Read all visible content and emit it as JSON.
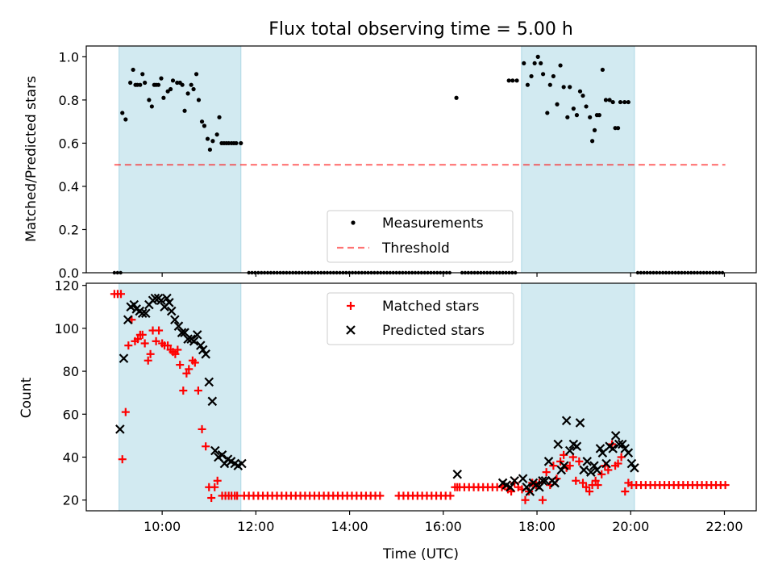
{
  "title": "Flux total observing time = 5.00 h",
  "colors": {
    "shade": "#add8e6",
    "measurement": "#000000",
    "threshold": "#ff0000",
    "matched": "#ff0000",
    "predicted": "#000000"
  },
  "chart_data": [
    {
      "type": "scatter",
      "ylabel": "Matched/Predicted stars",
      "xlim": [
        8.38,
        22.68
      ],
      "ylim": [
        0,
        1.05
      ],
      "yticks": [
        0.0,
        0.2,
        0.4,
        0.6,
        0.8,
        1.0
      ],
      "ytick_labels": [
        "0.0",
        "0.2",
        "0.4",
        "0.6",
        "0.8",
        "1.0"
      ],
      "xticks": [
        10,
        12,
        14,
        16,
        18,
        20,
        22
      ],
      "shaded_spans": [
        [
          9.08,
          11.68
        ],
        [
          17.67,
          20.08
        ]
      ],
      "legend": {
        "placement": "lower center",
        "entries": [
          {
            "label": "Measurements",
            "marker": "dot"
          },
          {
            "label": "Threshold",
            "marker": "dashed-line"
          }
        ]
      },
      "threshold": {
        "value": 0.5,
        "x_range": [
          8.98,
          22.02
        ]
      },
      "zero_run_spans": [
        [
          8.98,
          9.13
        ],
        [
          11.85,
          16.2
        ],
        [
          16.4,
          17.55
        ],
        [
          20.15,
          22.02
        ]
      ],
      "series": [
        {
          "name": "Measurements",
          "x": [
            9.15,
            9.22,
            9.32,
            9.38,
            9.43,
            9.47,
            9.53,
            9.58,
            9.63,
            9.72,
            9.78,
            9.83,
            9.87,
            9.92,
            9.98,
            10.03,
            10.12,
            10.18,
            10.23,
            10.32,
            10.38,
            10.43,
            10.48,
            10.55,
            10.62,
            10.67,
            10.73,
            10.78,
            10.85,
            10.9,
            10.97,
            11.02,
            11.08,
            11.17,
            11.22,
            11.27,
            11.32,
            11.37,
            11.42,
            11.48,
            11.53,
            11.58,
            11.68,
            16.28,
            17.4,
            17.48,
            17.57,
            17.72,
            17.8,
            17.88,
            17.95,
            18.02,
            18.08,
            18.13,
            18.22,
            18.28,
            18.35,
            18.43,
            18.5,
            18.57,
            18.65,
            18.7,
            18.78,
            18.85,
            18.92,
            18.98,
            19.05,
            19.13,
            19.18,
            19.23,
            19.28,
            19.33,
            19.4,
            19.47,
            19.55,
            19.62,
            19.67,
            19.73,
            19.78,
            19.87,
            19.95
          ],
          "y": [
            0.74,
            0.71,
            0.88,
            0.94,
            0.87,
            0.87,
            0.87,
            0.92,
            0.88,
            0.8,
            0.77,
            0.87,
            0.87,
            0.87,
            0.9,
            0.81,
            0.84,
            0.85,
            0.89,
            0.88,
            0.88,
            0.87,
            0.75,
            0.83,
            0.87,
            0.85,
            0.92,
            0.8,
            0.7,
            0.68,
            0.62,
            0.57,
            0.61,
            0.64,
            0.72,
            0.6,
            0.6,
            0.6,
            0.6,
            0.6,
            0.6,
            0.6,
            0.6,
            0.81,
            0.89,
            0.89,
            0.89,
            0.97,
            0.87,
            0.91,
            0.97,
            1.0,
            0.97,
            0.92,
            0.74,
            0.87,
            0.91,
            0.78,
            0.96,
            0.86,
            0.72,
            0.86,
            0.76,
            0.73,
            0.84,
            0.82,
            0.77,
            0.72,
            0.61,
            0.66,
            0.73,
            0.73,
            0.94,
            0.8,
            0.8,
            0.79,
            0.67,
            0.67,
            0.79,
            0.79,
            0.79
          ]
        }
      ]
    },
    {
      "type": "scatter",
      "xlabel": "Time (UTC)",
      "ylabel": "Count",
      "xlim": [
        8.38,
        22.68
      ],
      "ylim": [
        15,
        121
      ],
      "yticks": [
        20,
        40,
        60,
        80,
        100,
        120
      ],
      "ytick_labels": [
        "20",
        "40",
        "60",
        "80",
        "100",
        "120"
      ],
      "xticks": [
        10,
        12,
        14,
        16,
        18,
        20,
        22
      ],
      "xtick_labels": [
        "10:00",
        "12:00",
        "14:00",
        "16:00",
        "18:00",
        "20:00",
        "22:00"
      ],
      "shaded_spans": [
        [
          9.08,
          11.68
        ],
        [
          17.67,
          20.08
        ]
      ],
      "legend": {
        "placement": "upper center",
        "entries": [
          {
            "label": "Matched stars",
            "marker": "plus"
          },
          {
            "label": "Predicted stars",
            "marker": "x"
          }
        ]
      },
      "runs": [
        {
          "series": "Matched stars",
          "x_start": 11.75,
          "x_end": 14.68,
          "y": 22,
          "step": 0.1
        },
        {
          "series": "Matched stars",
          "x_start": 15.05,
          "x_end": 16.2,
          "y": 22,
          "step": 0.1
        },
        {
          "series": "Matched stars",
          "x_start": 16.25,
          "x_end": 17.25,
          "y": 26,
          "step": 0.1
        },
        {
          "series": "Matched stars",
          "x_start": 20.12,
          "x_end": 22.02,
          "y": 27,
          "step": 0.1
        }
      ],
      "series": [
        {
          "name": "Matched stars",
          "x": [
            8.98,
            9.05,
            9.12,
            9.15,
            9.22,
            9.28,
            9.35,
            9.42,
            9.48,
            9.53,
            9.58,
            9.63,
            9.7,
            9.75,
            9.8,
            9.87,
            9.93,
            10.0,
            10.05,
            10.12,
            10.18,
            10.23,
            10.28,
            10.33,
            10.38,
            10.45,
            10.52,
            10.57,
            10.65,
            10.7,
            10.77,
            10.85,
            10.93,
            11.0,
            11.05,
            11.12,
            11.18,
            11.28,
            11.35,
            11.42,
            11.48,
            11.55,
            11.6,
            16.3,
            17.3,
            17.38,
            17.45,
            17.52,
            17.6,
            17.68,
            17.75,
            17.83,
            17.9,
            17.98,
            18.05,
            18.12,
            18.2,
            18.28,
            18.35,
            18.42,
            18.5,
            18.57,
            18.63,
            18.7,
            18.77,
            18.83,
            18.9,
            18.98,
            19.05,
            19.12,
            19.18,
            19.25,
            19.3,
            19.38,
            19.45,
            19.52,
            19.6,
            19.67,
            19.73,
            19.8,
            19.88,
            19.95,
            20.02
          ],
          "y": [
            116,
            116,
            116,
            39,
            61,
            92,
            104,
            94,
            95,
            97,
            97,
            93,
            85,
            88,
            99,
            94,
            99,
            93,
            92,
            92,
            90,
            89,
            88,
            90,
            83,
            71,
            79,
            81,
            85,
            84,
            71,
            53,
            45,
            26,
            21,
            26,
            29,
            22,
            22,
            22,
            22,
            22,
            22,
            26,
            27,
            25,
            24,
            28,
            26,
            25,
            20,
            24,
            28,
            27,
            28,
            20,
            33,
            27,
            36,
            30,
            38,
            41,
            35,
            36,
            40,
            29,
            38,
            28,
            26,
            24,
            27,
            29,
            27,
            32,
            36,
            34,
            46,
            36,
            37,
            40,
            24,
            28,
            27
          ]
        },
        {
          "name": "Predicted stars",
          "x": [
            9.1,
            9.18,
            9.27,
            9.33,
            9.4,
            9.45,
            9.52,
            9.58,
            9.65,
            9.72,
            9.8,
            9.85,
            9.92,
            9.98,
            10.05,
            10.1,
            10.15,
            10.2,
            10.27,
            10.35,
            10.42,
            10.48,
            10.55,
            10.62,
            10.68,
            10.75,
            10.82,
            10.87,
            10.93,
            11.0,
            11.07,
            11.13,
            11.2,
            11.28,
            11.33,
            11.4,
            11.47,
            11.55,
            11.62,
            11.7,
            16.3,
            17.27,
            17.35,
            17.43,
            17.52,
            17.7,
            17.78,
            17.85,
            17.92,
            17.98,
            18.05,
            18.12,
            18.18,
            18.25,
            18.32,
            18.38,
            18.45,
            18.52,
            18.58,
            18.63,
            18.7,
            18.78,
            18.85,
            18.92,
            19.0,
            19.07,
            19.15,
            19.22,
            19.28,
            19.35,
            19.4,
            19.48,
            19.55,
            19.62,
            19.68,
            19.75,
            19.82,
            19.88,
            19.95,
            20.02,
            20.08
          ],
          "y": [
            53,
            86,
            104,
            110,
            111,
            109,
            108,
            107,
            107,
            111,
            113,
            114,
            114,
            113,
            110,
            114,
            112,
            108,
            104,
            101,
            98,
            98,
            95,
            95,
            94,
            97,
            92,
            90,
            88,
            75,
            66,
            43,
            40,
            41,
            37,
            39,
            38,
            37,
            36,
            37,
            32,
            28,
            27,
            26,
            29,
            30,
            26,
            24,
            28,
            27,
            26,
            29,
            29,
            38,
            29,
            28,
            46,
            34,
            36,
            57,
            43,
            46,
            45,
            56,
            34,
            38,
            33,
            36,
            34,
            44,
            42,
            37,
            45,
            44,
            50,
            46,
            46,
            44,
            42,
            37,
            35
          ]
        }
      ]
    }
  ]
}
